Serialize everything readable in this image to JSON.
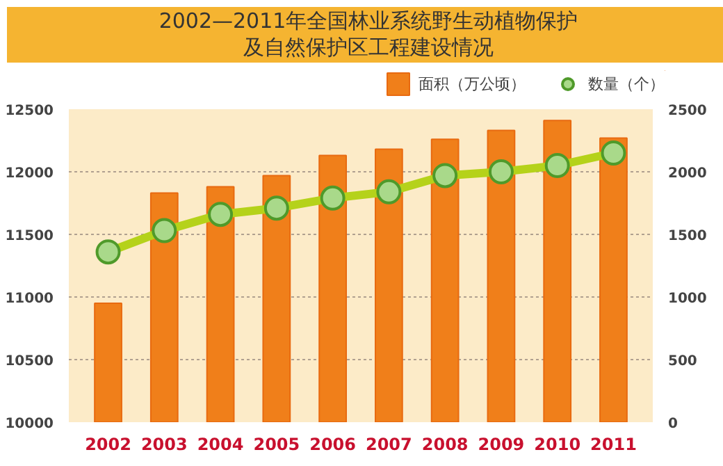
{
  "chart_data": {
    "type": "bar",
    "title": "2002—2011年全国林业系统野生动植物保护及自然保护区工程建设情况",
    "categories": [
      "2002",
      "2003",
      "2004",
      "2005",
      "2006",
      "2007",
      "2008",
      "2009",
      "2010",
      "2011"
    ],
    "series": [
      {
        "name": "面积（万公顷）",
        "color": "#f07f1a",
        "values": [
          10950,
          11830,
          11880,
          11970,
          12130,
          12180,
          12260,
          12330,
          12410,
          12270
        ]
      },
      {
        "name": "数量（个）",
        "type": "line",
        "axis": "y2",
        "color": "#b5d21a",
        "marker": "circle",
        "values": [
          1360,
          1530,
          1660,
          1710,
          1790,
          1840,
          1970,
          2000,
          2050,
          2150
        ]
      }
    ],
    "ylim": [
      10000,
      12500
    ],
    "yticks": [
      10000,
      10500,
      11000,
      11500,
      12000,
      12500
    ],
    "y2lim": [
      0,
      2500
    ],
    "y2ticks": [
      0,
      500,
      1000,
      1500,
      2000,
      2500
    ],
    "grid": "y",
    "legend": "top right"
  }
}
